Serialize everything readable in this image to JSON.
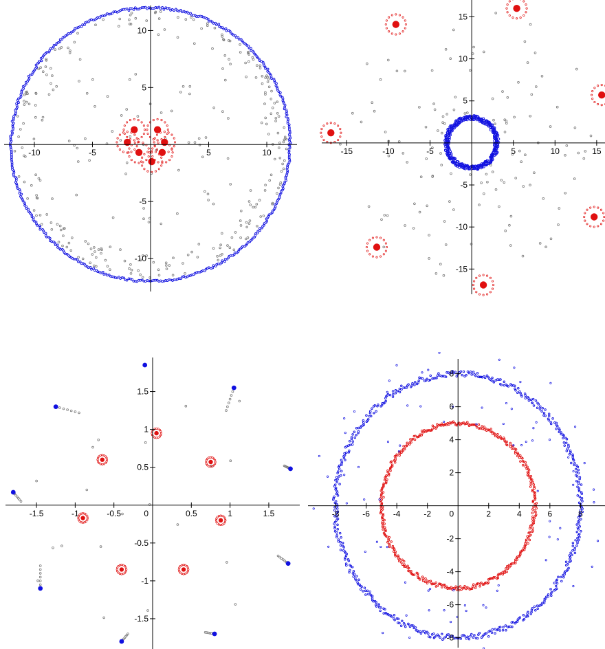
{
  "colors": {
    "blue": "#1010e0",
    "red": "#e01010",
    "grey": "#7a7a7a",
    "axis": "#000000"
  },
  "chart_data": [
    {
      "type": "scatter",
      "xlim": [
        -12.6,
        12.6
      ],
      "ylim": [
        -12.9,
        12.2
      ],
      "xticks": [
        -10,
        -5,
        5,
        10
      ],
      "yticks": [
        -10,
        -5,
        5,
        10
      ],
      "tick_labels_x": [
        "-10",
        "-5",
        "5",
        "10"
      ],
      "tick_labels_y": [
        "-10",
        "-5",
        "5",
        "10"
      ],
      "blue_circle": {
        "cx": 0,
        "cy": 0,
        "r": 12
      },
      "red_points": [
        [
          -1.4,
          1.3
        ],
        [
          0.6,
          1.3
        ],
        [
          1.2,
          0.2
        ],
        [
          -2.0,
          0.2
        ],
        [
          -1.0,
          -0.7
        ],
        [
          1.0,
          -0.7
        ],
        [
          0.1,
          -1.5
        ]
      ],
      "red_halo_radius": 0.9,
      "grey_arcs": true
    },
    {
      "type": "scatter",
      "xlim": [
        -18,
        16
      ],
      "ylim": [
        -18,
        17
      ],
      "xticks": [
        -15,
        -10,
        -5,
        5,
        10,
        15
      ],
      "yticks": [
        -15,
        -10,
        -5,
        5,
        10,
        15
      ],
      "tick_labels_x": [
        "-15",
        "-10",
        "-5",
        "5",
        "10",
        "15"
      ],
      "tick_labels_y": [
        "-15",
        "-10",
        "-5",
        "5",
        "10",
        "15"
      ],
      "blue_circle": {
        "cx": 0,
        "cy": 0,
        "r": 3
      },
      "red_points": [
        [
          5.4,
          16
        ],
        [
          -9.1,
          14.1
        ],
        [
          15.6,
          5.7
        ],
        [
          -16.9,
          1.2
        ],
        [
          14.7,
          -8.8
        ],
        [
          -11.4,
          -12.4
        ],
        [
          1.4,
          -16.9
        ]
      ],
      "red_halo_radius": 1.2,
      "grey_arcs": false
    },
    {
      "type": "scatter",
      "xlim": [
        -1.9,
        1.9
      ],
      "ylim": [
        -1.9,
        1.95
      ],
      "xticks": [
        -1.5,
        -1,
        -0.5,
        0.5,
        1,
        1.5
      ],
      "yticks": [
        -1.5,
        -1,
        -0.5,
        0.5,
        1,
        1.5
      ],
      "tick_labels_x": [
        "-1.5",
        "-1",
        "-0.5",
        "0.5",
        "1",
        "1.5"
      ],
      "tick_labels_y": [
        "-1.5",
        "-1",
        "-0.5",
        "0.5",
        "1",
        "1.5"
      ],
      "origin_label": "0",
      "blue_points": [
        [
          -0.1,
          1.85
        ],
        [
          -1.25,
          1.3
        ],
        [
          1.05,
          1.55
        ],
        [
          1.78,
          0.48
        ],
        [
          -1.8,
          0.17
        ],
        [
          1.75,
          -0.77
        ],
        [
          -1.45,
          -1.1
        ],
        [
          -0.4,
          -1.8
        ],
        [
          0.8,
          -1.7
        ]
      ],
      "blue_tails": [
        [
          [
            -1.25,
            1.3
          ],
          [
            -0.95,
            1.22
          ]
        ],
        [
          [
            1.05,
            1.55
          ],
          [
            0.95,
            1.25
          ]
        ],
        [
          [
            1.78,
            0.48
          ],
          [
            1.7,
            0.52
          ]
        ],
        [
          [
            -1.8,
            0.17
          ],
          [
            -1.7,
            0.05
          ]
        ],
        [
          [
            1.75,
            -0.77
          ],
          [
            1.62,
            -0.67
          ]
        ],
        [
          [
            -1.45,
            -1.1
          ],
          [
            -1.45,
            -0.8
          ]
        ],
        [
          [
            -0.4,
            -1.8
          ],
          [
            -0.32,
            -1.7
          ]
        ],
        [
          [
            0.8,
            -1.7
          ],
          [
            0.68,
            -1.68
          ]
        ]
      ],
      "red_points": [
        [
          0.05,
          0.95
        ],
        [
          -0.65,
          0.6
        ],
        [
          0.75,
          0.57
        ],
        [
          -0.9,
          -0.17
        ],
        [
          0.88,
          -0.2
        ],
        [
          -0.4,
          -0.85
        ],
        [
          0.4,
          -0.85
        ]
      ],
      "red_halo_radius": 0.06
    },
    {
      "type": "scatter",
      "xlim": [
        -9.8,
        9.6
      ],
      "ylim": [
        -8.6,
        8.9
      ],
      "xticks": [
        -8,
        -6,
        -4,
        -2,
        2,
        4,
        6,
        8
      ],
      "yticks": [
        -8,
        -6,
        -4,
        -2,
        2,
        4,
        6,
        8
      ],
      "tick_labels_x": [
        "-8",
        "-6",
        "-4",
        "-2",
        "2",
        "4",
        "6",
        "8"
      ],
      "tick_labels_y": [
        "-8",
        "-6",
        "-4",
        "-2",
        "2",
        "4",
        "6",
        "8"
      ],
      "origin_label": "0",
      "blue_circle": {
        "cx": 0,
        "cy": 0,
        "r": 8
      },
      "red_circle": {
        "cx": 0,
        "cy": 0,
        "r": 5
      }
    }
  ]
}
